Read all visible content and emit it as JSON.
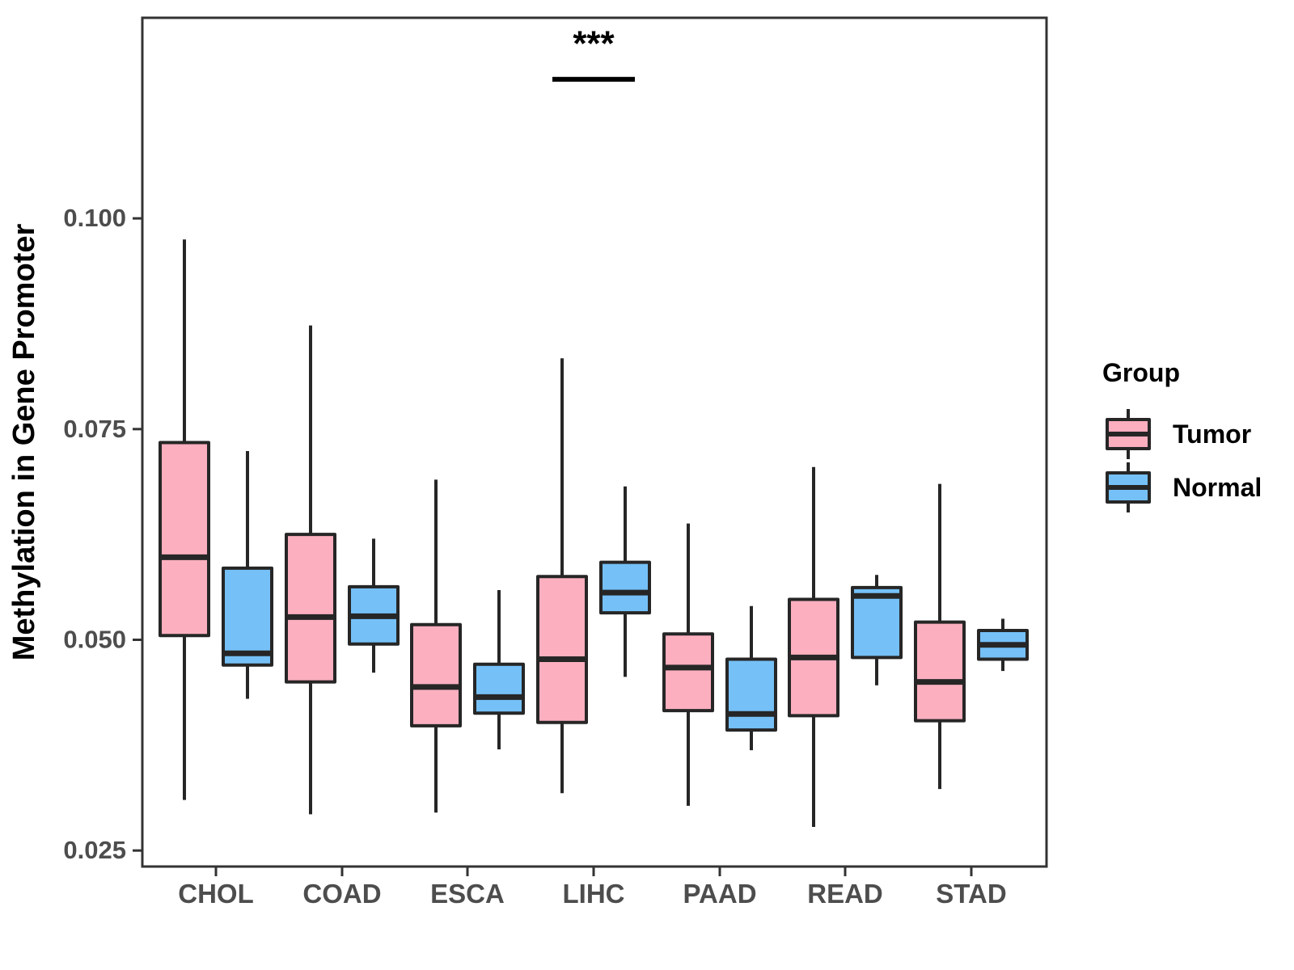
{
  "chart_data": {
    "type": "grouped_boxplot",
    "title": "",
    "xlabel": "",
    "ylabel": "Methylation in Gene Promoter",
    "categories": [
      "CHOL",
      "COAD",
      "ESCA",
      "LIHC",
      "PAAD",
      "READ",
      "STAD"
    ],
    "y_ticks": [
      0.025,
      0.05,
      0.075,
      0.1
    ],
    "y_tick_labels": [
      "0.025",
      "0.050",
      "0.075",
      "0.100"
    ],
    "ylim": [
      0.0231,
      0.1238
    ],
    "grid": "off",
    "legend": {
      "title": "Group",
      "position": "right",
      "entries": [
        {
          "label": "Tumor",
          "color": "#FBAFBF"
        },
        {
          "label": "Normal",
          "color": "#75C0F7"
        }
      ]
    },
    "series": [
      {
        "name": "Tumor",
        "color": "#FBAFBF",
        "boxes": [
          {
            "category": "CHOL",
            "whisker_low": 0.031,
            "q1": 0.0505,
            "median": 0.0598,
            "q3": 0.0734,
            "whisker_high": 0.0975
          },
          {
            "category": "COAD",
            "whisker_low": 0.0293,
            "q1": 0.045,
            "median": 0.0527,
            "q3": 0.0625,
            "whisker_high": 0.0873
          },
          {
            "category": "ESCA",
            "whisker_low": 0.0295,
            "q1": 0.0398,
            "median": 0.0444,
            "q3": 0.0518,
            "whisker_high": 0.069
          },
          {
            "category": "LIHC",
            "whisker_low": 0.0318,
            "q1": 0.0402,
            "median": 0.0477,
            "q3": 0.0575,
            "whisker_high": 0.0834
          },
          {
            "category": "PAAD",
            "whisker_low": 0.0303,
            "q1": 0.0416,
            "median": 0.0467,
            "q3": 0.0507,
            "whisker_high": 0.0638
          },
          {
            "category": "READ",
            "whisker_low": 0.0278,
            "q1": 0.041,
            "median": 0.0479,
            "q3": 0.0548,
            "whisker_high": 0.0705
          },
          {
            "category": "STAD",
            "whisker_low": 0.0323,
            "q1": 0.0404,
            "median": 0.045,
            "q3": 0.0521,
            "whisker_high": 0.0685
          }
        ]
      },
      {
        "name": "Normal",
        "color": "#75C0F7",
        "boxes": [
          {
            "category": "CHOL",
            "whisker_low": 0.043,
            "q1": 0.047,
            "median": 0.0484,
            "q3": 0.0585,
            "whisker_high": 0.0724
          },
          {
            "category": "COAD",
            "whisker_low": 0.0461,
            "q1": 0.0495,
            "median": 0.0528,
            "q3": 0.0563,
            "whisker_high": 0.062
          },
          {
            "category": "ESCA",
            "whisker_low": 0.037,
            "q1": 0.0413,
            "median": 0.0432,
            "q3": 0.0471,
            "whisker_high": 0.0559
          },
          {
            "category": "LIHC",
            "whisker_low": 0.0456,
            "q1": 0.0532,
            "median": 0.0556,
            "q3": 0.0592,
            "whisker_high": 0.0682
          },
          {
            "category": "PAAD",
            "whisker_low": 0.0369,
            "q1": 0.0393,
            "median": 0.0412,
            "q3": 0.0477,
            "whisker_high": 0.054
          },
          {
            "category": "READ",
            "whisker_low": 0.0446,
            "q1": 0.0479,
            "median": 0.0552,
            "q3": 0.0562,
            "whisker_high": 0.0577
          },
          {
            "category": "STAD",
            "whisker_low": 0.0463,
            "q1": 0.0477,
            "median": 0.0494,
            "q3": 0.0511,
            "whisker_high": 0.0525
          }
        ]
      }
    ],
    "annotations": [
      {
        "type": "significance",
        "text": "***",
        "category": "LIHC",
        "bar_value": 0.1165,
        "text_value": 0.1205
      }
    ],
    "colors": {
      "box_stroke": "#262626",
      "panel_border": "#333333",
      "tick_label": "#4D4D4D",
      "axis_title": "#000000",
      "legend_text": "#000000",
      "annotation": "#000000",
      "background": "#FFFFFF"
    }
  }
}
